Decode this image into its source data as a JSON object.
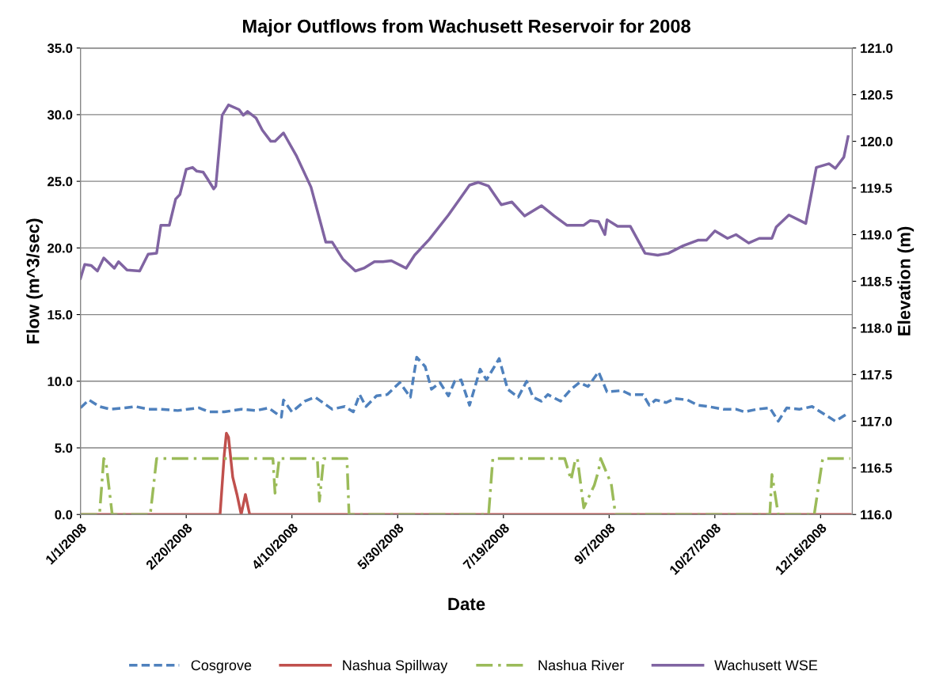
{
  "chart_data": {
    "type": "line",
    "title": "Major Outflows from Wachusett Reservoir for 2008",
    "xlabel": "Date",
    "ylabel": "Flow (m^3/sec)",
    "y2label": "Elevation (m)",
    "xlim": [
      "2008-01-01",
      "2008-12-31"
    ],
    "xticks": [
      {
        "value": "2008-01-01",
        "label": "1/1/2008"
      },
      {
        "value": "2008-02-20",
        "label": "2/20/2008"
      },
      {
        "value": "2008-04-10",
        "label": "4/10/2008"
      },
      {
        "value": "2008-05-30",
        "label": "5/30/2008"
      },
      {
        "value": "2008-07-19",
        "label": "7/19/2008"
      },
      {
        "value": "2008-09-07",
        "label": "9/7/2008"
      },
      {
        "value": "2008-10-27",
        "label": "10/27/2008"
      },
      {
        "value": "2008-12-16",
        "label": "12/16/2008"
      }
    ],
    "ylim": [
      0,
      35
    ],
    "yticks": [
      {
        "value": 0,
        "label": "0.0"
      },
      {
        "value": 5,
        "label": "5.0"
      },
      {
        "value": 10,
        "label": "10.0"
      },
      {
        "value": 15,
        "label": "15.0"
      },
      {
        "value": 20,
        "label": "20.0"
      },
      {
        "value": 25,
        "label": "25.0"
      },
      {
        "value": 30,
        "label": "30.0"
      },
      {
        "value": 35,
        "label": "35.0"
      }
    ],
    "y2lim": [
      116,
      121
    ],
    "y2ticks": [
      {
        "value": 116,
        "label": "116.0"
      },
      {
        "value": 116.5,
        "label": "116.5"
      },
      {
        "value": 117,
        "label": "117.0"
      },
      {
        "value": 117.5,
        "label": "117.5"
      },
      {
        "value": 118,
        "label": "118.0"
      },
      {
        "value": 118.5,
        "label": "118.5"
      },
      {
        "value": 119,
        "label": "119.0"
      },
      {
        "value": 119.5,
        "label": "119.5"
      },
      {
        "value": 120,
        "label": "120.0"
      },
      {
        "value": 120.5,
        "label": "120.5"
      },
      {
        "value": 121,
        "label": "121.0"
      }
    ],
    "grid": "y",
    "legend": "bottom",
    "series": [
      {
        "name": "Cosgrove",
        "color": "#4f81bd",
        "line_style": "dashed",
        "x": [
          "2008-01-01",
          "2008-01-05",
          "2008-01-10",
          "2008-01-15",
          "2008-01-22",
          "2008-01-27",
          "2008-02-02",
          "2008-02-08",
          "2008-02-16",
          "2008-02-26",
          "2008-03-02",
          "2008-03-09",
          "2008-03-17",
          "2008-03-24",
          "2008-03-30",
          "2008-04-05",
          "2008-04-06",
          "2008-04-10",
          "2008-04-16",
          "2008-04-21",
          "2008-04-29",
          "2008-05-05",
          "2008-05-09",
          "2008-05-12",
          "2008-05-15",
          "2008-05-20",
          "2008-05-25",
          "2008-05-31",
          "2008-06-05",
          "2008-06-08",
          "2008-06-12",
          "2008-06-15",
          "2008-06-19",
          "2008-06-23",
          "2008-06-26",
          "2008-06-29",
          "2008-07-03",
          "2008-07-08",
          "2008-07-11",
          "2008-07-17",
          "2008-07-21",
          "2008-07-26",
          "2008-07-30",
          "2008-08-02",
          "2008-08-06",
          "2008-08-09",
          "2008-08-15",
          "2008-08-20",
          "2008-08-24",
          "2008-08-28",
          "2008-09-02",
          "2008-09-06",
          "2008-09-13",
          "2008-09-17",
          "2008-09-23",
          "2008-09-26",
          "2008-09-29",
          "2008-10-04",
          "2008-10-08",
          "2008-10-14",
          "2008-10-19",
          "2008-10-24",
          "2008-10-31",
          "2008-11-06",
          "2008-11-10",
          "2008-11-16",
          "2008-11-22",
          "2008-11-26",
          "2008-11-30",
          "2008-12-06",
          "2008-12-12",
          "2008-12-19",
          "2008-12-23",
          "2008-12-26",
          "2008-12-29"
        ],
        "values": [
          8.0,
          8.6,
          8.1,
          7.9,
          8.0,
          8.1,
          7.9,
          7.9,
          7.8,
          8.0,
          7.7,
          7.7,
          7.9,
          7.8,
          8.0,
          7.3,
          8.6,
          7.7,
          8.5,
          8.8,
          7.9,
          8.1,
          7.7,
          9.0,
          8.1,
          8.9,
          9.0,
          9.9,
          8.8,
          11.8,
          11.1,
          9.4,
          9.9,
          8.9,
          10.0,
          10.1,
          8.2,
          10.9,
          10.1,
          11.7,
          9.4,
          8.8,
          10.0,
          8.8,
          8.5,
          9.0,
          8.5,
          9.4,
          9.9,
          9.6,
          10.7,
          9.2,
          9.3,
          9.0,
          9.0,
          8.2,
          8.6,
          8.4,
          8.7,
          8.6,
          8.2,
          8.1,
          7.9,
          7.9,
          7.7,
          7.9,
          8.0,
          7.0,
          8.0,
          7.9,
          8.1,
          7.4,
          7.0,
          7.3,
          7.6
        ]
      },
      {
        "name": "Nashua Spillway",
        "color": "#c0504d",
        "line_style": "solid",
        "x": [
          "2008-01-01",
          "2008-03-07",
          "2008-03-09",
          "2008-03-10",
          "2008-03-11",
          "2008-03-13",
          "2008-03-15",
          "2008-03-17",
          "2008-03-19",
          "2008-03-21",
          "2008-12-30"
        ],
        "values": [
          0,
          0,
          4.5,
          6.1,
          5.8,
          2.8,
          1.5,
          0,
          1.5,
          0,
          0
        ]
      },
      {
        "name": "Nashua River",
        "color": "#9bbb59",
        "line_style": "dashdot",
        "x": [
          "2008-01-01",
          "2008-01-10",
          "2008-01-12",
          "2008-01-13",
          "2008-01-16",
          "2008-02-03",
          "2008-02-06",
          "2008-04-01",
          "2008-04-02",
          "2008-04-04",
          "2008-04-22",
          "2008-04-23",
          "2008-04-25",
          "2008-05-06",
          "2008-05-07",
          "2008-07-12",
          "2008-07-14",
          "2008-08-17",
          "2008-08-20",
          "2008-08-22",
          "2008-08-23",
          "2008-08-26",
          "2008-08-31",
          "2008-09-02",
          "2008-09-03",
          "2008-09-08",
          "2008-09-10",
          "2008-11-22",
          "2008-11-23",
          "2008-11-26",
          "2008-12-13",
          "2008-12-17",
          "2008-12-30"
        ],
        "values": [
          0,
          0,
          4.2,
          4.0,
          0,
          0,
          4.2,
          4.2,
          1.6,
          4.2,
          4.2,
          1.0,
          4.2,
          4.2,
          0,
          0,
          4.2,
          4.2,
          2.6,
          4.1,
          4.2,
          0.5,
          2.2,
          3.3,
          4.2,
          2.3,
          0,
          0,
          3.0,
          0,
          0,
          4.2,
          4.2
        ]
      },
      {
        "name": "Wachusett WSE",
        "color": "#8064a2",
        "line_style": "solid",
        "axis": "y2",
        "x": [
          "2008-01-01",
          "2008-01-03",
          "2008-01-06",
          "2008-01-09",
          "2008-01-12",
          "2008-01-17",
          "2008-01-19",
          "2008-01-23",
          "2008-01-29",
          "2008-02-02",
          "2008-02-06",
          "2008-02-08",
          "2008-02-12",
          "2008-02-15",
          "2008-02-17",
          "2008-02-20",
          "2008-02-23",
          "2008-02-25",
          "2008-02-28",
          "2008-03-01",
          "2008-03-04",
          "2008-03-05",
          "2008-03-08",
          "2008-03-11",
          "2008-03-16",
          "2008-03-18",
          "2008-03-20",
          "2008-03-24",
          "2008-03-27",
          "2008-03-31",
          "2008-04-02",
          "2008-04-06",
          "2008-04-12",
          "2008-04-19",
          "2008-04-26",
          "2008-04-29",
          "2008-05-04",
          "2008-05-10",
          "2008-05-14",
          "2008-05-19",
          "2008-05-23",
          "2008-05-27",
          "2008-06-03",
          "2008-06-07",
          "2008-06-14",
          "2008-06-23",
          "2008-07-03",
          "2008-07-07",
          "2008-07-12",
          "2008-07-18",
          "2008-07-23",
          "2008-07-29",
          "2008-08-06",
          "2008-08-12",
          "2008-08-18",
          "2008-08-26",
          "2008-08-29",
          "2008-09-02",
          "2008-09-05",
          "2008-09-06",
          "2008-09-11",
          "2008-09-17",
          "2008-09-24",
          "2008-09-30",
          "2008-10-05",
          "2008-10-12",
          "2008-10-19",
          "2008-10-23",
          "2008-10-27",
          "2008-11-02",
          "2008-11-06",
          "2008-11-12",
          "2008-11-17",
          "2008-11-23",
          "2008-11-25",
          "2008-12-01",
          "2008-12-09",
          "2008-12-14",
          "2008-12-20",
          "2008-12-23",
          "2008-12-27",
          "2008-12-29"
        ],
        "values": [
          118.53,
          118.68,
          118.67,
          118.61,
          118.75,
          118.64,
          118.71,
          118.62,
          118.61,
          118.79,
          118.8,
          119.1,
          119.1,
          119.38,
          119.43,
          119.7,
          119.72,
          119.68,
          119.67,
          119.6,
          119.49,
          119.52,
          120.28,
          120.39,
          120.34,
          120.28,
          120.32,
          120.25,
          120.12,
          120.0,
          120.0,
          120.09,
          119.85,
          119.51,
          118.92,
          118.92,
          118.74,
          118.61,
          118.64,
          118.71,
          118.71,
          118.72,
          118.64,
          118.78,
          118.95,
          119.21,
          119.53,
          119.56,
          119.52,
          119.32,
          119.35,
          119.2,
          119.31,
          119.2,
          119.1,
          119.1,
          119.15,
          119.14,
          119.0,
          119.16,
          119.09,
          119.09,
          118.8,
          118.78,
          118.8,
          118.88,
          118.94,
          118.94,
          119.04,
          118.96,
          119.0,
          118.91,
          118.96,
          118.96,
          119.08,
          119.21,
          119.12,
          119.72,
          119.76,
          119.71,
          119.83,
          120.05
        ]
      }
    ]
  }
}
